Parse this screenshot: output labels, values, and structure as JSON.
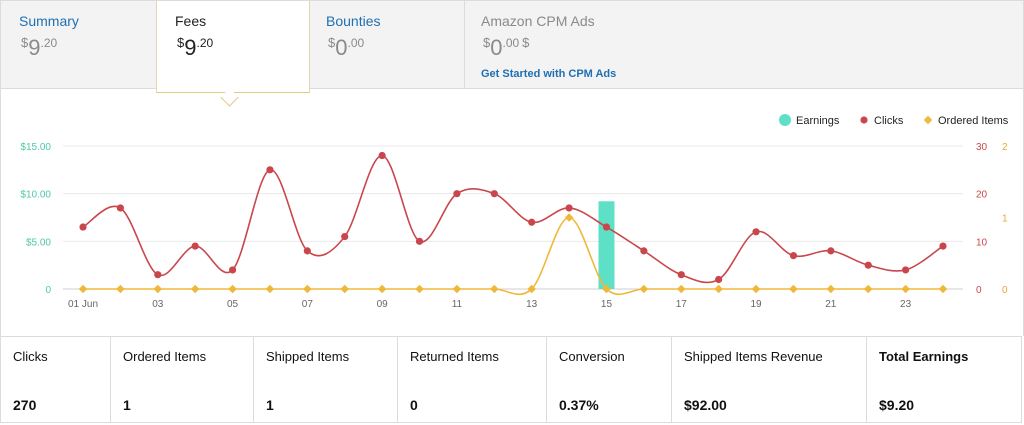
{
  "tabs": {
    "summary": {
      "title": "Summary",
      "currency": "$",
      "whole": "9",
      "fraction": ".20"
    },
    "fees": {
      "title": "Fees",
      "currency": "$",
      "whole": "9",
      "fraction": ".20"
    },
    "bounties": {
      "title": "Bounties",
      "currency": "$",
      "whole": "0",
      "fraction": ".00"
    },
    "cpm": {
      "title": "Amazon CPM Ads",
      "currency": "$",
      "whole": "0",
      "fraction": ".00",
      "suffix": "$",
      "link": "Get Started with CPM Ads"
    }
  },
  "chart_data": {
    "type": "line",
    "x": [
      "01 Jun",
      "02",
      "03",
      "04",
      "05",
      "06",
      "07",
      "08",
      "09",
      "10",
      "11",
      "12",
      "13",
      "14",
      "15",
      "16",
      "17",
      "18",
      "19",
      "20",
      "21",
      "22",
      "23",
      "24"
    ],
    "x_tick_labels": [
      "01 Jun",
      "03",
      "05",
      "07",
      "09",
      "11",
      "13",
      "15",
      "17",
      "19",
      "21",
      "23"
    ],
    "y_left_ticks": [
      "0",
      "$5.00",
      "$10.00",
      "$15.00"
    ],
    "y_left_range": [
      0,
      15
    ],
    "y_right1_ticks": [
      "0",
      "10",
      "20",
      "30"
    ],
    "y_right1_range": [
      0,
      30
    ],
    "y_right2_ticks": [
      "0",
      "1",
      "2"
    ],
    "y_right2_range": [
      0,
      2
    ],
    "legend": {
      "placement": "top-right",
      "items": [
        "Earnings",
        "Clicks",
        "Ordered Items"
      ]
    },
    "grid": true,
    "series": [
      {
        "name": "Earnings",
        "type": "bar",
        "axis": "left",
        "color": "#5ee0c6",
        "values": [
          0,
          0,
          0,
          0,
          0,
          0,
          0,
          0,
          0,
          0,
          0,
          0,
          0,
          0,
          9.2,
          0,
          0,
          0,
          0,
          0,
          0,
          0,
          0,
          0
        ]
      },
      {
        "name": "Clicks",
        "type": "line",
        "axis": "right1",
        "color": "#c9474c",
        "values": [
          13,
          17,
          3,
          9,
          4,
          25,
          8,
          11,
          28,
          10,
          20,
          20,
          14,
          17,
          13,
          8,
          3,
          2,
          12,
          7,
          8,
          5,
          4,
          9
        ]
      },
      {
        "name": "Ordered Items",
        "type": "line",
        "axis": "right2",
        "color": "#f0b83a",
        "values": [
          0,
          0,
          0,
          0,
          0,
          0,
          0,
          0,
          0,
          0,
          0,
          0,
          0,
          1,
          0,
          0,
          0,
          0,
          0,
          0,
          0,
          0,
          0,
          0
        ]
      }
    ]
  },
  "stats": [
    {
      "label": "Clicks",
      "value": "270"
    },
    {
      "label": "Ordered Items",
      "value": "1"
    },
    {
      "label": "Shipped Items",
      "value": "1"
    },
    {
      "label": "Returned Items",
      "value": "0"
    },
    {
      "label": "Conversion",
      "value": "0.37%"
    },
    {
      "label": "Shipped Items Revenue",
      "value": "$92.00"
    },
    {
      "label": "Total Earnings",
      "value": "$9.20"
    }
  ]
}
